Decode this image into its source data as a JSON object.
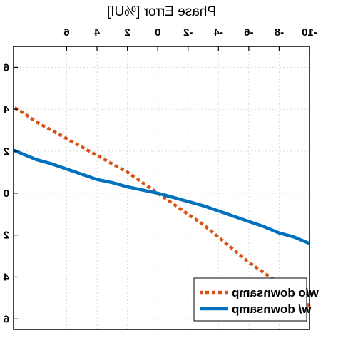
{
  "chart_data": {
    "type": "line",
    "mirrored_horizontally": true,
    "xlabel": "Phase Error [%UI]",
    "xlim": [
      -10,
      9.5
    ],
    "ylim": [
      -6.5,
      7
    ],
    "x_ticks": [
      -10,
      -8,
      -6,
      -4,
      -2,
      0,
      2,
      4,
      6
    ],
    "x_tick_labels": [
      "-10",
      "-8",
      "-6",
      "-4",
      "-2",
      "0",
      "2",
      "4",
      "6"
    ],
    "y_ticks": [
      -6,
      -4,
      -2,
      0,
      2,
      4,
      6
    ],
    "y_tick_labels": [
      "6",
      "4",
      "2",
      "0",
      "2",
      "4",
      "6"
    ],
    "grid": true,
    "legend_position": "bottom-right",
    "series": [
      {
        "name": "w/o downsamp",
        "style": "dotted",
        "color": "#d95319",
        "x": [
          -10,
          -9,
          -8,
          -7,
          -6,
          -5,
          -4,
          -3,
          -2,
          -1,
          0,
          1,
          2,
          3,
          4,
          5,
          6,
          7,
          8,
          9,
          9.5
        ],
        "y": [
          -5.4,
          -4.7,
          -4.3,
          -3.8,
          -3.3,
          -2.7,
          -2.1,
          -1.5,
          -1.0,
          -0.5,
          0,
          0.5,
          1.0,
          1.4,
          1.8,
          2.2,
          2.6,
          3.0,
          3.4,
          3.9,
          4.1
        ]
      },
      {
        "name": "w/ downsamp",
        "style": "solid",
        "color": "#0072bd",
        "x": [
          -10,
          -9,
          -8,
          -7,
          -6,
          -5,
          -4,
          -3,
          -2,
          -1,
          0,
          1,
          2,
          3,
          4,
          5,
          6,
          7,
          8,
          9,
          9.5
        ],
        "y": [
          -2.4,
          -2.1,
          -1.9,
          -1.6,
          -1.35,
          -1.1,
          -0.85,
          -0.6,
          -0.4,
          -0.2,
          0,
          0.15,
          0.3,
          0.5,
          0.65,
          0.9,
          1.15,
          1.4,
          1.6,
          1.9,
          2.05
        ]
      }
    ]
  }
}
